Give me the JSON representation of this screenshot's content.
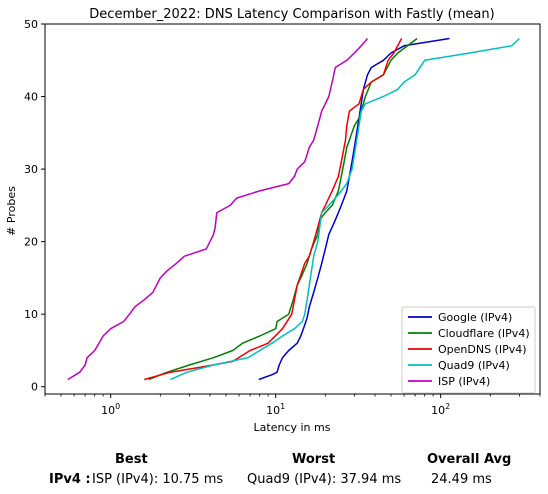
{
  "chart_data": {
    "type": "line",
    "title": "December_2022: DNS Latency Comparison with Fastly (mean)",
    "xlabel": "Latency in ms",
    "ylabel": "# Probes",
    "x_scale": "log",
    "xlim": [
      0.4,
      400
    ],
    "ylim": [
      -1,
      50
    ],
    "x_ticks": [
      1,
      10,
      100
    ],
    "x_tick_labels": [
      "10^0",
      "10^1",
      "10^2"
    ],
    "y_ticks": [
      0,
      10,
      20,
      30,
      40,
      50
    ],
    "y_tick_labels": [
      "0",
      "10",
      "20",
      "30",
      "40",
      "50"
    ],
    "grid": false,
    "legend_position": "lower-right",
    "series": [
      {
        "name": "Google (IPv4)",
        "color": "#0000cc",
        "points": [
          [
            7.9,
            1
          ],
          [
            9.6,
            1.7
          ],
          [
            10.2,
            2
          ],
          [
            10.5,
            3
          ],
          [
            11,
            4
          ],
          [
            12,
            5
          ],
          [
            13.5,
            6
          ],
          [
            14.2,
            7
          ],
          [
            15,
            8.5
          ],
          [
            15.5,
            9.5
          ],
          [
            16,
            11
          ],
          [
            17,
            13
          ],
          [
            18,
            15
          ],
          [
            19,
            17
          ],
          [
            20,
            19
          ],
          [
            21,
            21
          ],
          [
            22,
            22
          ],
          [
            23,
            23
          ],
          [
            24,
            24
          ],
          [
            25,
            25
          ],
          [
            26,
            26
          ],
          [
            27,
            27
          ],
          [
            28,
            29
          ],
          [
            29,
            31
          ],
          [
            30,
            33
          ],
          [
            31,
            35
          ],
          [
            32,
            37
          ],
          [
            33,
            39
          ],
          [
            34,
            41
          ],
          [
            36,
            43
          ],
          [
            38,
            44
          ],
          [
            45,
            45
          ],
          [
            50,
            46
          ],
          [
            60,
            47
          ],
          [
            113,
            48
          ]
        ]
      },
      {
        "name": "Cloudflare (IPv4)",
        "color": "#008000",
        "points": [
          [
            1.7,
            1
          ],
          [
            2.2,
            2
          ],
          [
            3,
            3
          ],
          [
            4.2,
            4
          ],
          [
            5.5,
            5
          ],
          [
            6.3,
            6
          ],
          [
            8,
            7
          ],
          [
            10,
            8
          ],
          [
            10.2,
            9
          ],
          [
            12,
            10
          ],
          [
            12.8,
            12
          ],
          [
            13.5,
            14
          ],
          [
            14.2,
            15
          ],
          [
            15.5,
            17
          ],
          [
            16.5,
            19
          ],
          [
            18,
            21
          ],
          [
            18.5,
            23
          ],
          [
            20,
            24
          ],
          [
            22,
            25
          ],
          [
            23,
            26
          ],
          [
            24,
            27
          ],
          [
            25,
            29
          ],
          [
            26,
            31
          ],
          [
            27,
            33
          ],
          [
            28,
            34
          ],
          [
            30,
            36
          ],
          [
            32,
            37
          ],
          [
            33,
            38
          ],
          [
            35,
            40
          ],
          [
            38,
            42
          ],
          [
            45,
            43
          ],
          [
            50,
            45
          ],
          [
            55,
            46
          ],
          [
            72,
            48
          ]
        ]
      },
      {
        "name": "OpenDNS (IPv4)",
        "color": "#ee0000",
        "points": [
          [
            1.6,
            1
          ],
          [
            2.3,
            2
          ],
          [
            3.5,
            2.7
          ],
          [
            5.5,
            3.5
          ],
          [
            7,
            5
          ],
          [
            9,
            6
          ],
          [
            11,
            8
          ],
          [
            12.5,
            10
          ],
          [
            13,
            12
          ],
          [
            13.5,
            14
          ],
          [
            14,
            15
          ],
          [
            15,
            17
          ],
          [
            16,
            18
          ],
          [
            17,
            20
          ],
          [
            18,
            22
          ],
          [
            19,
            24
          ],
          [
            20,
            25
          ],
          [
            21,
            26
          ],
          [
            22,
            27
          ],
          [
            23,
            28
          ],
          [
            24,
            29
          ],
          [
            25,
            31
          ],
          [
            26,
            33
          ],
          [
            26.5,
            34
          ],
          [
            27,
            36
          ],
          [
            28,
            38
          ],
          [
            32,
            39
          ],
          [
            34,
            41
          ],
          [
            38,
            42
          ],
          [
            45,
            43
          ],
          [
            48,
            45
          ],
          [
            52,
            46
          ],
          [
            58,
            48
          ]
        ]
      },
      {
        "name": "Quad9 (IPv4)",
        "color": "#00bfbf",
        "points": [
          [
            2.3,
            1
          ],
          [
            2.9,
            2
          ],
          [
            4.2,
            3
          ],
          [
            6.8,
            4
          ],
          [
            8,
            5
          ],
          [
            9.5,
            6
          ],
          [
            11,
            7
          ],
          [
            13,
            8
          ],
          [
            14.5,
            9
          ],
          [
            15,
            10
          ],
          [
            15.5,
            12
          ],
          [
            16,
            14
          ],
          [
            16.5,
            16
          ],
          [
            17,
            18
          ],
          [
            18,
            20
          ],
          [
            18.5,
            22
          ],
          [
            19,
            24
          ],
          [
            21,
            25
          ],
          [
            23,
            26
          ],
          [
            25,
            27
          ],
          [
            27,
            28
          ],
          [
            29,
            30
          ],
          [
            30,
            32
          ],
          [
            31,
            34
          ],
          [
            32,
            36
          ],
          [
            33,
            38
          ],
          [
            35,
            39
          ],
          [
            45,
            40
          ],
          [
            55,
            41
          ],
          [
            60,
            42
          ],
          [
            70,
            43
          ],
          [
            80,
            45
          ],
          [
            150,
            46
          ],
          [
            270,
            47
          ],
          [
            300,
            48
          ]
        ]
      },
      {
        "name": "ISP (IPv4)",
        "color": "#bf00bf",
        "points": [
          [
            0.55,
            1
          ],
          [
            0.65,
            2
          ],
          [
            0.7,
            3
          ],
          [
            0.72,
            4
          ],
          [
            0.8,
            5
          ],
          [
            0.85,
            6
          ],
          [
            0.9,
            7
          ],
          [
            1.0,
            8
          ],
          [
            1.2,
            9
          ],
          [
            1.3,
            10
          ],
          [
            1.4,
            11
          ],
          [
            1.6,
            12
          ],
          [
            1.8,
            13
          ],
          [
            2.0,
            15
          ],
          [
            2.2,
            16
          ],
          [
            2.5,
            17
          ],
          [
            2.8,
            18
          ],
          [
            3.8,
            19
          ],
          [
            4.2,
            21
          ],
          [
            4.3,
            22
          ],
          [
            4.4,
            24
          ],
          [
            5.3,
            25
          ],
          [
            5.8,
            26
          ],
          [
            8,
            27
          ],
          [
            12,
            28
          ],
          [
            13,
            29
          ],
          [
            13.5,
            30
          ],
          [
            15,
            31
          ],
          [
            16,
            33
          ],
          [
            17,
            34
          ],
          [
            18,
            36
          ],
          [
            19,
            38
          ],
          [
            20,
            39
          ],
          [
            21,
            40
          ],
          [
            22,
            42
          ],
          [
            23,
            44
          ],
          [
            27,
            45
          ],
          [
            30,
            46
          ],
          [
            33,
            47
          ],
          [
            36,
            48
          ]
        ]
      }
    ]
  },
  "summary": {
    "best_header": "Best",
    "worst_header": "Worst",
    "avg_header": "Overall Avg",
    "row_label": "IPv4 :",
    "best_value": "ISP (IPv4): 10.75 ms",
    "worst_value": "Quad9 (IPv4): 37.94 ms",
    "avg_value": "24.49 ms"
  }
}
